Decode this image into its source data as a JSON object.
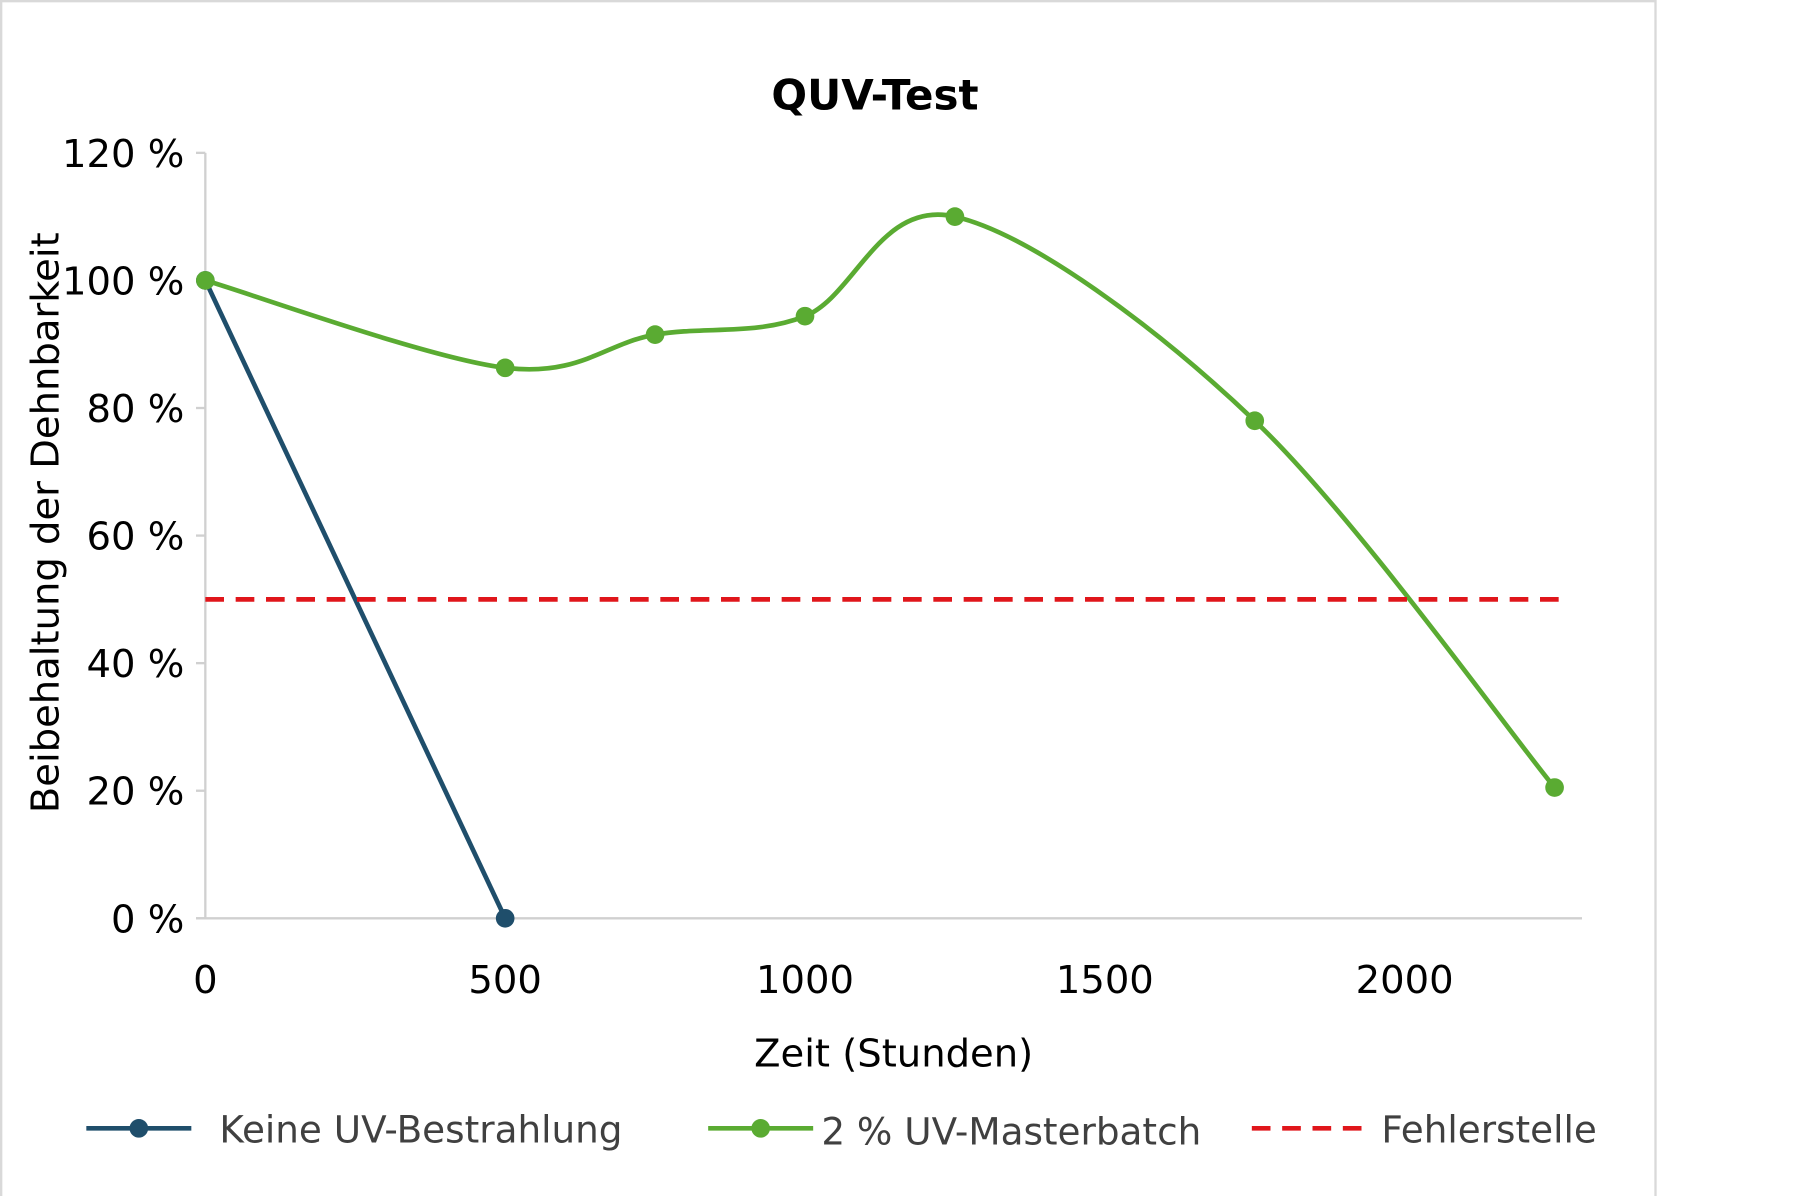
{
  "chart_data": {
    "type": "line",
    "title": "QUV-Test",
    "xlabel": "Zeit (Stunden)",
    "ylabel": "Beibehaltung der Dehnbarkeit",
    "xlim": [
      0,
      2300
    ],
    "ylim": [
      0,
      120
    ],
    "x_ticks": [
      0,
      500,
      1000,
      1500,
      2000
    ],
    "x_tick_labels": [
      "0",
      "500",
      "1000",
      "1500",
      "2000"
    ],
    "y_ticks": [
      0,
      20,
      40,
      60,
      80,
      100,
      120
    ],
    "y_tick_labels": [
      "0 %",
      "20 %",
      "40 %",
      "60 %",
      "80 %",
      "100 %",
      "120 %"
    ],
    "grid": false,
    "legend_position": "bottom",
    "series": [
      {
        "name": "Keine UV-Bestrahlung",
        "color": "#1f4e6b",
        "style": "solid",
        "smooth": false,
        "markers": true,
        "x": [
          0,
          500
        ],
        "y": [
          100,
          0
        ]
      },
      {
        "name": "2 % UV-Masterbatch",
        "color": "#5aab32",
        "style": "solid",
        "smooth": true,
        "markers": true,
        "x": [
          0,
          500,
          750,
          1000,
          1250,
          1750,
          2250
        ],
        "y": [
          100,
          86.3,
          91.5,
          94.4,
          110,
          78,
          20.5
        ]
      },
      {
        "name": "Fehlerstelle",
        "color": "#e0161b",
        "style": "dashed",
        "smooth": false,
        "markers": false,
        "x": [
          0,
          2270
        ],
        "y": [
          50,
          50
        ]
      }
    ]
  }
}
